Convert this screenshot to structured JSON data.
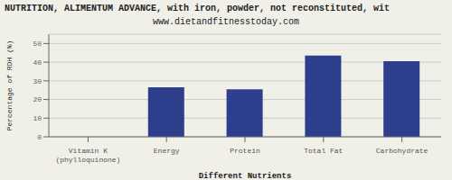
{
  "chart_data": {
    "type": "bar",
    "title": "NUTRITION, ALIMENTUM ADVANCE, with iron, powder, not reconstituted, wit",
    "subtitle": "www.dietandfitnesstoday.com",
    "xlabel": "Different Nutrients",
    "ylabel": "Percentage of RDH (%)",
    "categories": [
      "Vitamin K (phylloquinone)",
      "Energy",
      "Protein",
      "Total Fat",
      "Carbohydrate"
    ],
    "values": [
      0,
      26.5,
      25.5,
      43.5,
      40.5
    ],
    "color": "#2d3e8c",
    "ylim": [
      0,
      55
    ],
    "yticks": [
      0,
      10,
      20,
      30,
      40,
      50
    ],
    "grid": true
  }
}
